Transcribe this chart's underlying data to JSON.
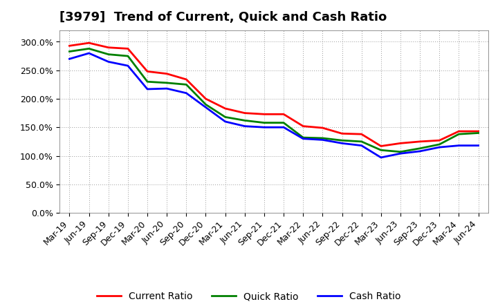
{
  "title": "[3979]  Trend of Current, Quick and Cash Ratio",
  "labels": [
    "Mar-19",
    "Jun-19",
    "Sep-19",
    "Dec-19",
    "Mar-20",
    "Jun-20",
    "Sep-20",
    "Dec-20",
    "Mar-21",
    "Jun-21",
    "Sep-21",
    "Dec-21",
    "Mar-22",
    "Jun-22",
    "Sep-22",
    "Dec-22",
    "Mar-23",
    "Jun-23",
    "Sep-23",
    "Dec-23",
    "Mar-24",
    "Jun-24"
  ],
  "current_ratio": [
    293,
    298,
    290,
    288,
    248,
    244,
    234,
    200,
    183,
    175,
    173,
    173,
    152,
    149,
    139,
    138,
    117,
    122,
    125,
    127,
    143,
    143
  ],
  "quick_ratio": [
    283,
    288,
    278,
    275,
    230,
    228,
    225,
    190,
    168,
    162,
    158,
    158,
    132,
    131,
    127,
    125,
    110,
    107,
    113,
    120,
    138,
    140
  ],
  "cash_ratio": [
    270,
    280,
    265,
    258,
    217,
    218,
    210,
    185,
    160,
    152,
    150,
    150,
    130,
    128,
    122,
    118,
    97,
    104,
    108,
    115,
    118,
    118
  ],
  "current_color": "#ff0000",
  "quick_color": "#008000",
  "cash_color": "#0000ff",
  "ylim": [
    0,
    320
  ],
  "yticks": [
    0,
    50,
    100,
    150,
    200,
    250,
    300
  ],
  "background_color": "#ffffff",
  "grid_color": "#999999",
  "title_fontsize": 13,
  "tick_fontsize": 9,
  "legend_fontsize": 10,
  "line_width": 2.0
}
